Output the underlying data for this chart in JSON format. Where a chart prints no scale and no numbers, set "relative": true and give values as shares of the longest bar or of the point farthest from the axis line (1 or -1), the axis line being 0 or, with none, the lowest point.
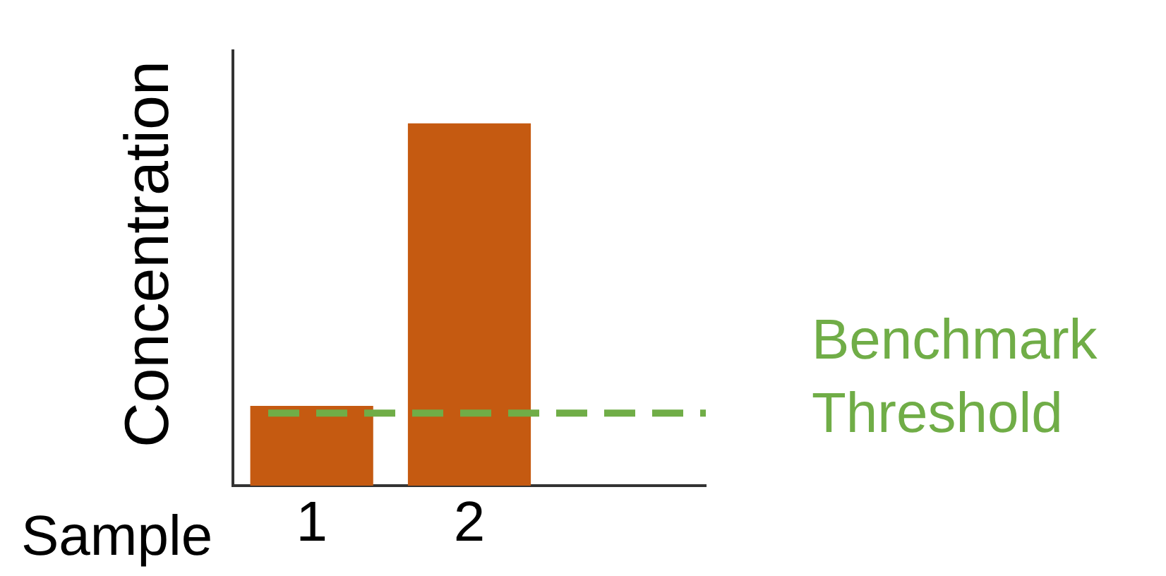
{
  "chart_data": {
    "type": "bar",
    "relative": true,
    "xlabel": "Sample",
    "ylabel": "Concentration",
    "categories": [
      "1",
      "2",
      null
    ],
    "values": [
      0.22,
      1,
      null
    ],
    "color": "#c55a11",
    "ref_lines": [
      {
        "axis": "y",
        "value": 0.2,
        "label": "Benchmark Threshold",
        "color": "#70ad47",
        "line_style": "dashed"
      }
    ],
    "grid": false,
    "legend": false
  }
}
